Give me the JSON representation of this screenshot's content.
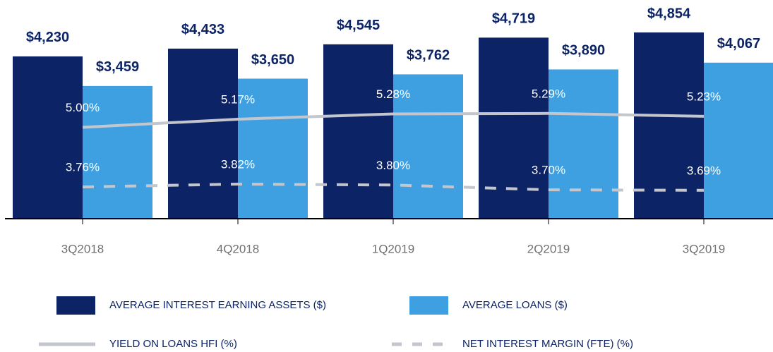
{
  "chart_data": {
    "type": "bar-line",
    "categories": [
      "3Q2018",
      "4Q2018",
      "1Q2019",
      "2Q2019",
      "3Q2019"
    ],
    "series": [
      {
        "name": "AVERAGE INTEREST EARNING ASSETS ($)",
        "kind": "bar",
        "color": "#0c2366",
        "values": [
          4230,
          4433,
          4545,
          4719,
          4854
        ],
        "value_labels": [
          "$4,230",
          "$4,433",
          "$4,545",
          "$4,719",
          "$4,854"
        ]
      },
      {
        "name": "AVERAGE LOANS ($)",
        "kind": "bar",
        "color": "#3ea0e0",
        "values": [
          3459,
          3650,
          3762,
          3890,
          4067
        ],
        "value_labels": [
          "$3,459",
          "$3,650",
          "$3,762",
          "$3,890",
          "$4,067"
        ]
      },
      {
        "name": "YIELD ON LOANS HFI (%)",
        "kind": "line",
        "axis": "y2",
        "style": "solid",
        "color": "#c3c6cd",
        "values": [
          5.0,
          5.17,
          5.28,
          5.29,
          5.23
        ],
        "value_labels": [
          "5.00%",
          "5.17%",
          "5.28%",
          "5.29%",
          "5.23%"
        ]
      },
      {
        "name": "NET INTEREST MARGIN (FTE) (%)",
        "kind": "line",
        "axis": "y2",
        "style": "dashed",
        "color": "#c3c6cd",
        "values": [
          3.76,
          3.82,
          3.8,
          3.7,
          3.69
        ],
        "value_labels": [
          "3.76%",
          "3.82%",
          "3.80%",
          "3.70%",
          "3.69%"
        ]
      }
    ],
    "ylim": [
      0,
      5700
    ],
    "y2lim": [
      3.1,
      7.65
    ]
  }
}
